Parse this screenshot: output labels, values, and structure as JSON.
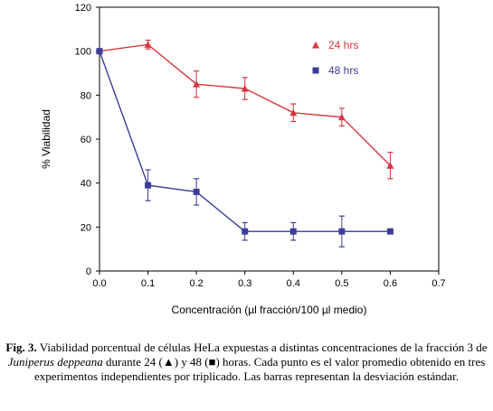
{
  "chart_data": {
    "type": "line",
    "xlabel": "Concentración (µl fracción/100 µl medio)",
    "ylabel": "% Viabilidad",
    "xlim": [
      0,
      0.7
    ],
    "ylim": [
      0,
      120
    ],
    "xticks": [
      "0.0",
      "0.1",
      "0.2",
      "0.3",
      "0.4",
      "0.5",
      "0.6",
      "0.7"
    ],
    "yticks": [
      "0",
      "20",
      "40",
      "60",
      "80",
      "100",
      "120"
    ],
    "grid": false,
    "legend_position": "top-right",
    "series": [
      {
        "name": "24 hrs",
        "color": "#d9363e",
        "marker": "triangle",
        "x": [
          0.0,
          0.1,
          0.2,
          0.3,
          0.4,
          0.5,
          0.6
        ],
        "y": [
          100,
          103,
          85,
          83,
          72,
          70,
          48
        ],
        "err": [
          1,
          2,
          6,
          5,
          4,
          4,
          6
        ]
      },
      {
        "name": "48 hrs",
        "color": "#3c3c9a",
        "marker": "square",
        "x": [
          0.0,
          0.1,
          0.2,
          0.3,
          0.4,
          0.5,
          0.6
        ],
        "y": [
          100,
          39,
          36,
          18,
          18,
          18,
          18
        ],
        "err": [
          1,
          7,
          6,
          4,
          4,
          7,
          0
        ]
      }
    ]
  },
  "caption": {
    "label": "Fig. 3.",
    "text_1": " Viabilidad porcentual de células HeLa expuestas a distintas concentraciones de la fracción 3 de ",
    "species": "Juniperus deppeana",
    "text_2": " durante 24 (▲) y 48 (■) horas. Cada punto es el valor promedio obtenido en tres experimentos independientes por triplicado. Las barras representan la desviación estándar."
  }
}
